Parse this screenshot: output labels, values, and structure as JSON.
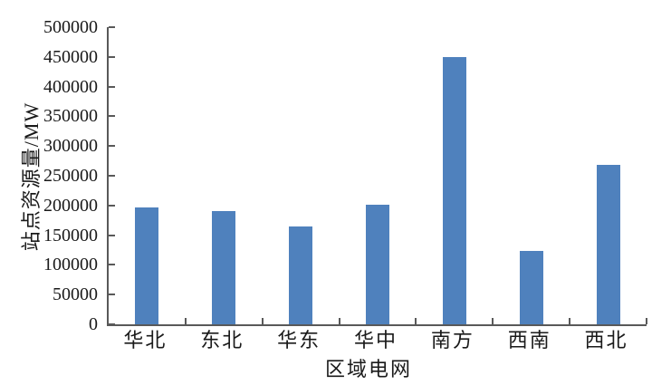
{
  "chart_data": {
    "type": "bar",
    "title": "",
    "categories": [
      "华北",
      "东北",
      "华东",
      "华中",
      "南方",
      "西南",
      "西北"
    ],
    "values": [
      197000,
      190000,
      164000,
      202000,
      450000,
      123000,
      268000
    ],
    "xlabel": "区域电网",
    "ylabel": "站点资源量/MW",
    "ylim": [
      0,
      500000
    ],
    "ytick_step": 50000,
    "ytick_labels": [
      "0",
      "50000",
      "100000",
      "150000",
      "200000",
      "250000",
      "300000",
      "350000",
      "400000",
      "450000",
      "500000"
    ],
    "legend": "none",
    "grid": false,
    "colors": {
      "bar": "#4f81bd",
      "axis": "#595959",
      "text": "#1a1a1a",
      "background": "#ffffff"
    }
  }
}
